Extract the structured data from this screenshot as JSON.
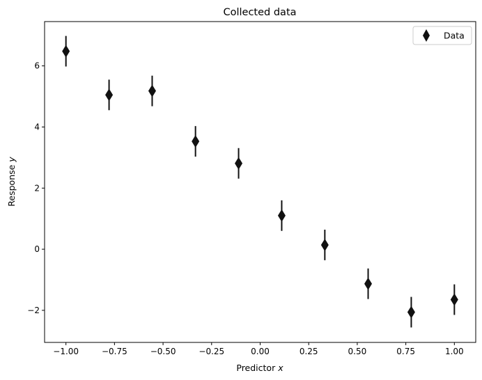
{
  "chart_data": {
    "type": "scatter",
    "title": "Collected data",
    "xlabel": {
      "prefix": "Predictor ",
      "var": "x"
    },
    "ylabel": {
      "prefix": "Response ",
      "var": "y"
    },
    "xlim": [
      -1.11,
      1.11
    ],
    "ylim": [
      -3.05,
      7.45
    ],
    "xticks": [
      -1.0,
      -0.75,
      -0.5,
      -0.25,
      0.0,
      0.25,
      0.5,
      0.75,
      1.0
    ],
    "xtick_labels": [
      "−1.00",
      "−0.75",
      "−0.50",
      "−0.25",
      "0.00",
      "0.25",
      "0.50",
      "0.75",
      "1.00"
    ],
    "yticks": [
      -2,
      0,
      2,
      4,
      6
    ],
    "ytick_labels": [
      "−2",
      "0",
      "2",
      "4",
      "6"
    ],
    "grid": false,
    "legend": {
      "position": "top-right",
      "entries": [
        "Data"
      ]
    },
    "series": [
      {
        "name": "Data",
        "marker": "diamond",
        "color": "#111111",
        "error": 0.5,
        "x": [
          -1.0,
          -0.778,
          -0.556,
          -0.333,
          -0.111,
          0.111,
          0.333,
          0.556,
          0.778,
          1.0
        ],
        "y": [
          6.48,
          5.05,
          5.18,
          3.53,
          2.81,
          1.1,
          0.14,
          -1.13,
          -2.06,
          -1.65
        ]
      }
    ]
  }
}
